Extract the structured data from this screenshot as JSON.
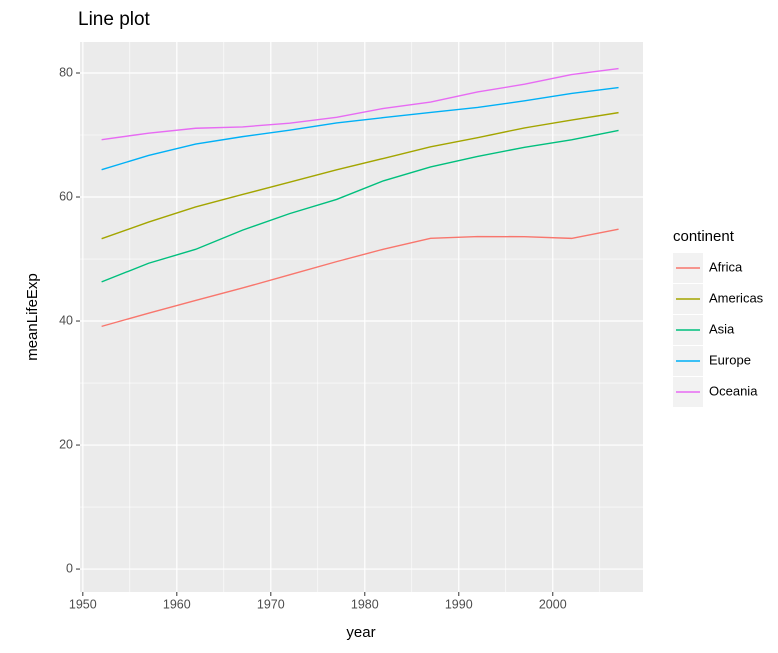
{
  "chart_data": {
    "type": "line",
    "title": "Line plot",
    "x_label": "year",
    "y_label": "meanLifeExp",
    "x": [
      1952,
      1957,
      1962,
      1967,
      1972,
      1977,
      1982,
      1987,
      1992,
      1997,
      2002,
      2007
    ],
    "series": [
      {
        "name": "Africa",
        "color": "#F8766D",
        "values": [
          39.14,
          41.27,
          43.32,
          45.33,
          47.45,
          49.58,
          51.59,
          53.34,
          53.63,
          53.6,
          53.33,
          54.81
        ]
      },
      {
        "name": "Americas",
        "color": "#A3A500",
        "values": [
          53.28,
          55.96,
          58.4,
          60.41,
          62.39,
          64.39,
          66.23,
          68.09,
          69.57,
          71.15,
          72.42,
          73.61
        ]
      },
      {
        "name": "Asia",
        "color": "#00BF7D",
        "values": [
          46.31,
          49.32,
          51.56,
          54.66,
          57.32,
          59.61,
          62.62,
          64.85,
          66.54,
          68.02,
          69.23,
          70.73
        ]
      },
      {
        "name": "Europe",
        "color": "#00B0F6",
        "values": [
          64.41,
          66.7,
          68.54,
          69.74,
          70.78,
          71.94,
          72.81,
          73.64,
          74.44,
          75.51,
          76.7,
          77.65
        ]
      },
      {
        "name": "Oceania",
        "color": "#E76BF3",
        "values": [
          69.25,
          70.3,
          71.09,
          71.31,
          71.91,
          72.86,
          74.29,
          75.32,
          76.94,
          78.19,
          79.74,
          80.72
        ]
      }
    ],
    "legend_title": "continent",
    "legend": "right",
    "xlim": [
      1949.7,
      2009.6
    ],
    "xticks": [
      1950,
      1960,
      1970,
      1980,
      1990,
      2000
    ],
    "xminor": [
      1955,
      1965,
      1975,
      1985,
      1995,
      2005
    ],
    "ylim": [
      -3.7,
      85.0
    ],
    "yticks": [
      0,
      20,
      40,
      60,
      80
    ],
    "yminor": [
      10,
      30,
      50,
      70
    ],
    "grid": true
  }
}
